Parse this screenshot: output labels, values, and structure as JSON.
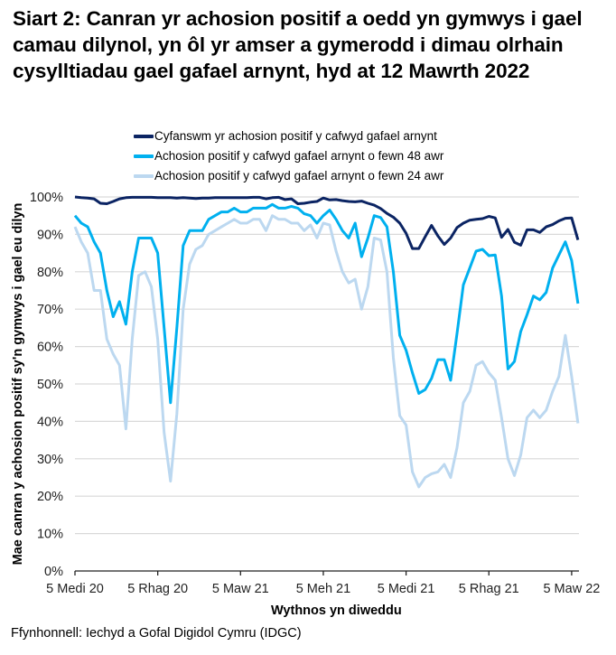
{
  "title": "Siart 2: Canran yr achosion positif a oedd yn gymwys i gael camau dilynol, yn ôl yr amser a gymerodd i dimau olrhain cysylltiadau gael gafael arnynt, hyd at 12 Mawrth 2022",
  "legend": [
    {
      "label": "Cyfanswm yr achosion positif y cafwyd gafael arnynt",
      "color": "#0b2463"
    },
    {
      "label": "Achosion positif y cafwyd gafael arnynt o fewn 48 awr",
      "color": "#00b0ef"
    },
    {
      "label": "Achosion positif y cafwyd gafael arnynt o fewn 24 awr",
      "color": "#bcd8f0"
    }
  ],
  "axes": {
    "ylabel": "Mae canran y achosion positif sy'n gymwys i gael eu dilyn",
    "xlabel": "Wythnos yn diweddu",
    "yticks": [
      "0%",
      "10%",
      "20%",
      "30%",
      "40%",
      "50%",
      "60%",
      "70%",
      "80%",
      "90%",
      "100%"
    ],
    "xticks": [
      "5 Medi 20",
      "5 Rhag 20",
      "5 Maw 21",
      "5 Meh 21",
      "5 Medi 21",
      "5 Rhag 21",
      "5 Maw 22"
    ]
  },
  "source": "Ffynhonnell: Iechyd a Gofal Digidol Cymru (IDGC)",
  "chart_data": {
    "type": "line",
    "title": "Siart 2: Canran yr achosion positif a oedd yn gymwys i gael camau dilynol, yn ôl yr amser a gymerodd i dimau olrhain cysylltiadau gael gafael arnynt, hyd at 12 Mawrth 2022",
    "xlabel": "Wythnos yn diweddu",
    "ylabel": "Mae canran y achosion positif sy'n gymwys i gael eu dilyn",
    "ylim": [
      0,
      100
    ],
    "y_unit": "%",
    "grid": true,
    "legend_position": "top",
    "x_start": "5 Medi 20",
    "x_end": "12 Maw 22",
    "x_interval": "weekly",
    "x_tick_labels": [
      "5 Medi 20",
      "5 Rhag 20",
      "5 Maw 21",
      "5 Meh 21",
      "5 Medi 21",
      "5 Rhag 21",
      "5 Maw 22"
    ],
    "x_tick_indices": [
      0,
      13,
      26,
      39,
      52,
      65,
      78
    ],
    "series": [
      {
        "name": "Cyfanswm yr achosion positif y cafwyd gafael arnynt",
        "color": "#0b2463",
        "values": [
          100,
          99.8,
          99.7,
          99.5,
          98.3,
          98.2,
          98.8,
          99.5,
          99.8,
          99.9,
          99.9,
          99.9,
          99.9,
          99.8,
          99.8,
          99.8,
          99.7,
          99.8,
          99.7,
          99.6,
          99.7,
          99.7,
          99.8,
          99.8,
          99.8,
          99.8,
          99.8,
          99.8,
          99.9,
          99.9,
          99.5,
          99.8,
          99.9,
          99.3,
          99.5,
          98.2,
          98.3,
          98.6,
          98.8,
          99.7,
          99.2,
          99.3,
          99.0,
          98.8,
          98.7,
          98.9,
          98.3,
          97.8,
          96.9,
          95.6,
          94.6,
          93,
          90.3,
          86.2,
          86.2,
          89.4,
          92.4,
          89.6,
          87.3,
          89,
          91.8,
          93,
          93.8,
          94,
          94.2,
          94.8,
          94.4,
          89.2,
          91.3,
          87.9,
          87.1,
          91.2,
          91.2,
          90.5,
          92.0,
          92.6,
          93.6,
          94.3,
          94.4,
          88.5
        ]
      },
      {
        "name": "Achosion positif y cafwyd gafael arnynt o fewn 48 awr",
        "color": "#00b0ef",
        "values": [
          95,
          93,
          92,
          88,
          85,
          75,
          68,
          72,
          66,
          80,
          89,
          89,
          89,
          85,
          65,
          45,
          65,
          87,
          91,
          91,
          91,
          94,
          95,
          96,
          96,
          97,
          96,
          96,
          97,
          97,
          97,
          98,
          97,
          97,
          97.5,
          97,
          95.5,
          95,
          93,
          95,
          96.5,
          94,
          91,
          89,
          93,
          84,
          89,
          95,
          94.5,
          92,
          80,
          63,
          59,
          53,
          47.5,
          48.5,
          51.5,
          56.5,
          56.5,
          51,
          63.5,
          76.5,
          81,
          85.5,
          86,
          84.3,
          84.5,
          73.5,
          54,
          56,
          64,
          68.5,
          73.5,
          72.5,
          74.5,
          81,
          84.5,
          88,
          83,
          71.5
        ]
      },
      {
        "name": "Achosion positif y cafwyd gafael arnynt o fewn 24 awr",
        "color": "#bcd8f0",
        "values": [
          92,
          88,
          85,
          75,
          75,
          62,
          58,
          55,
          38,
          62,
          79,
          80,
          76,
          62,
          37,
          24,
          42,
          70,
          82,
          86,
          87,
          90,
          91,
          92,
          93,
          94,
          93,
          93,
          94,
          94,
          91,
          95,
          94,
          94,
          93,
          93,
          91,
          92.5,
          89,
          93,
          92.5,
          85.5,
          80,
          77,
          78,
          70,
          76,
          89,
          88.5,
          80,
          57,
          41.5,
          39,
          26.5,
          22.5,
          25,
          26,
          26.5,
          28.5,
          25,
          33,
          45,
          48,
          55,
          56,
          53,
          51,
          41,
          30,
          25.5,
          31,
          41,
          43,
          41,
          43,
          48,
          52,
          63,
          52,
          39.5
        ]
      }
    ]
  }
}
